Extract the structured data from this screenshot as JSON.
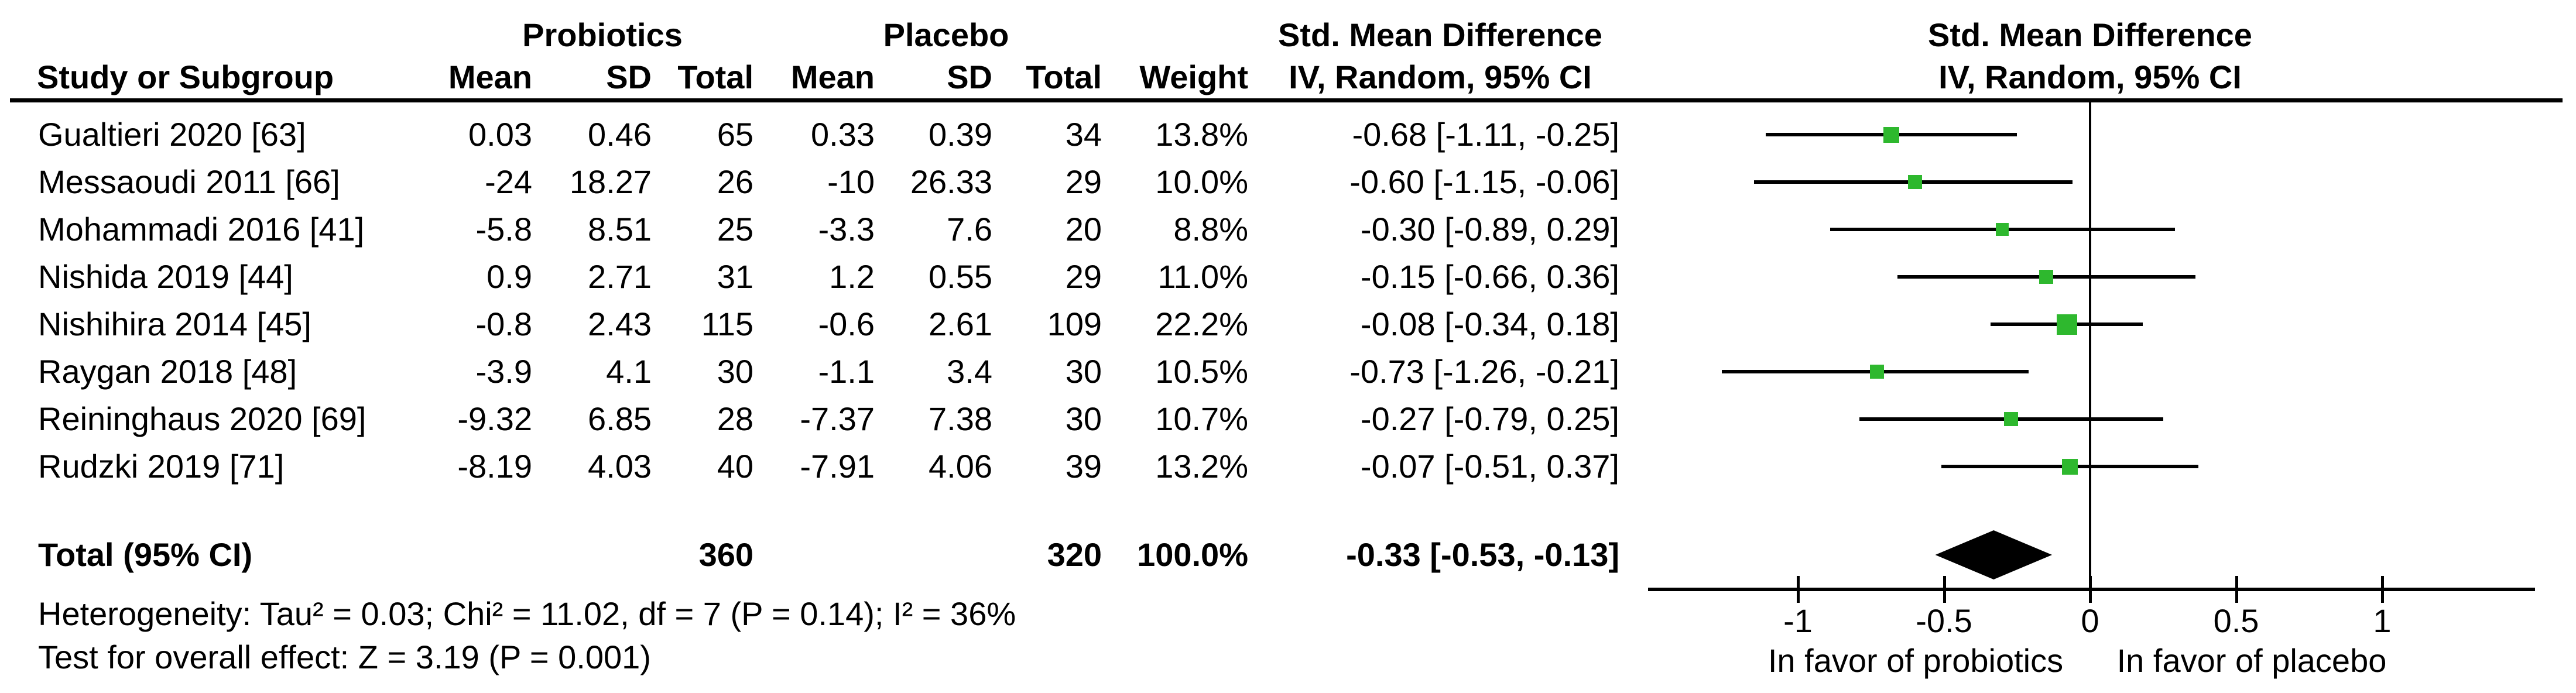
{
  "header": {
    "group_probiotics": "Probiotics",
    "group_placebo": "Placebo",
    "smd_left_line1": "Std. Mean Difference",
    "smd_left_line2": "IV, Random, 95% CI",
    "smd_right_line1": "Std. Mean Difference",
    "smd_right_line2": "IV, Random, 95% CI",
    "col_study": "Study or Subgroup",
    "col_mean1": "Mean",
    "col_sd1": "SD",
    "col_total1": "Total",
    "col_mean2": "Mean",
    "col_sd2": "SD",
    "col_total2": "Total",
    "col_weight": "Weight"
  },
  "chart_data": {
    "type": "forest",
    "effect_measure": "Std. Mean Difference, IV, Random, 95% CI",
    "x_axis": {
      "ticks": [
        -1,
        -0.5,
        0,
        0.5,
        1
      ],
      "tick_labels": [
        "-1",
        "-0.5",
        "0",
        "0.5",
        "1"
      ],
      "xlim": [
        -1.5,
        1.5
      ],
      "left_label": "In favor of probiotics",
      "right_label": "In favor of placebo"
    },
    "studies": [
      {
        "study": "Gualtieri 2020 [63]",
        "mean_probiotics": "0.03",
        "sd_probiotics": "0.46",
        "total_probiotics": "65",
        "mean_placebo": "0.33",
        "sd_placebo": "0.39",
        "total_placebo": "34",
        "weight": "13.8%",
        "weight_pct": 13.8,
        "smd": -0.68,
        "ci_low": -1.11,
        "ci_high": -0.25,
        "ci_text": "-0.68 [-1.11, -0.25]"
      },
      {
        "study": "Messaoudi 2011 [66]",
        "mean_probiotics": "-24",
        "sd_probiotics": "18.27",
        "total_probiotics": "26",
        "mean_placebo": "-10",
        "sd_placebo": "26.33",
        "total_placebo": "29",
        "weight": "10.0%",
        "weight_pct": 10.0,
        "smd": -0.6,
        "ci_low": -1.15,
        "ci_high": -0.06,
        "ci_text": "-0.60 [-1.15, -0.06]"
      },
      {
        "study": "Mohammadi 2016 [41]",
        "mean_probiotics": "-5.8",
        "sd_probiotics": "8.51",
        "total_probiotics": "25",
        "mean_placebo": "-3.3",
        "sd_placebo": "7.6",
        "total_placebo": "20",
        "weight": "8.8%",
        "weight_pct": 8.8,
        "smd": -0.3,
        "ci_low": -0.89,
        "ci_high": 0.29,
        "ci_text": "-0.30 [-0.89, 0.29]"
      },
      {
        "study": "Nishida 2019 [44]",
        "mean_probiotics": "0.9",
        "sd_probiotics": "2.71",
        "total_probiotics": "31",
        "mean_placebo": "1.2",
        "sd_placebo": "0.55",
        "total_placebo": "29",
        "weight": "11.0%",
        "weight_pct": 11.0,
        "smd": -0.15,
        "ci_low": -0.66,
        "ci_high": 0.36,
        "ci_text": "-0.15 [-0.66, 0.36]"
      },
      {
        "study": "Nishihira 2014 [45]",
        "mean_probiotics": "-0.8",
        "sd_probiotics": "2.43",
        "total_probiotics": "115",
        "mean_placebo": "-0.6",
        "sd_placebo": "2.61",
        "total_placebo": "109",
        "weight": "22.2%",
        "weight_pct": 22.2,
        "smd": -0.08,
        "ci_low": -0.34,
        "ci_high": 0.18,
        "ci_text": "-0.08 [-0.34, 0.18]"
      },
      {
        "study": "Raygan 2018 [48]",
        "mean_probiotics": "-3.9",
        "sd_probiotics": "4.1",
        "total_probiotics": "30",
        "mean_placebo": "-1.1",
        "sd_placebo": "3.4",
        "total_placebo": "30",
        "weight": "10.5%",
        "weight_pct": 10.5,
        "smd": -0.73,
        "ci_low": -1.26,
        "ci_high": -0.21,
        "ci_text": "-0.73 [-1.26, -0.21]"
      },
      {
        "study": "Reininghaus 2020 [69]",
        "mean_probiotics": "-9.32",
        "sd_probiotics": "6.85",
        "total_probiotics": "28",
        "mean_placebo": "-7.37",
        "sd_placebo": "7.38",
        "total_placebo": "30",
        "weight": "10.7%",
        "weight_pct": 10.7,
        "smd": -0.27,
        "ci_low": -0.79,
        "ci_high": 0.25,
        "ci_text": "-0.27 [-0.79, 0.25]"
      },
      {
        "study": "Rudzki 2019 [71]",
        "mean_probiotics": "-8.19",
        "sd_probiotics": "4.03",
        "total_probiotics": "40",
        "mean_placebo": "-7.91",
        "sd_placebo": "4.06",
        "total_placebo": "39",
        "weight": "13.2%",
        "weight_pct": 13.2,
        "smd": -0.07,
        "ci_low": -0.51,
        "ci_high": 0.37,
        "ci_text": "-0.07 [-0.51, 0.37]"
      }
    ],
    "total": {
      "label": "Total (95% CI)",
      "total_probiotics": "360",
      "total_placebo": "320",
      "weight": "100.0%",
      "smd": -0.33,
      "ci_low": -0.53,
      "ci_high": -0.13,
      "ci_text": "-0.33 [-0.53, -0.13]"
    },
    "heterogeneity": "Heterogeneity: Tau² = 0.03; Chi² = 11.02, df = 7 (P = 0.14); I² = 36%",
    "overall_effect": "Test for overall effect: Z = 3.19 (P = 0.001)",
    "marker_color": "#2EB82E",
    "line_color": "#000000"
  }
}
